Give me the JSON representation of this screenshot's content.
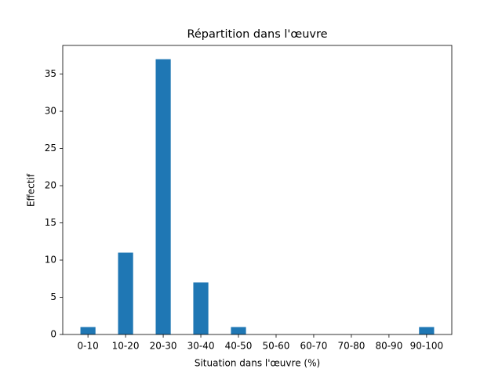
{
  "chart_data": {
    "type": "bar",
    "title": "Répartition dans l'œuvre",
    "xlabel": "Situation dans l'œuvre (%)",
    "ylabel": "Effectif",
    "categories": [
      "0-10",
      "10-20",
      "20-30",
      "30-40",
      "40-50",
      "50-60",
      "60-70",
      "70-80",
      "80-90",
      "90-100"
    ],
    "values": [
      1,
      11,
      37,
      7,
      1,
      0,
      0,
      0,
      0,
      1
    ],
    "color": "#1f77b4",
    "ylim": [
      0,
      38.85
    ],
    "yticks": [
      0,
      5,
      10,
      15,
      20,
      25,
      30,
      35
    ],
    "grid": false
  }
}
